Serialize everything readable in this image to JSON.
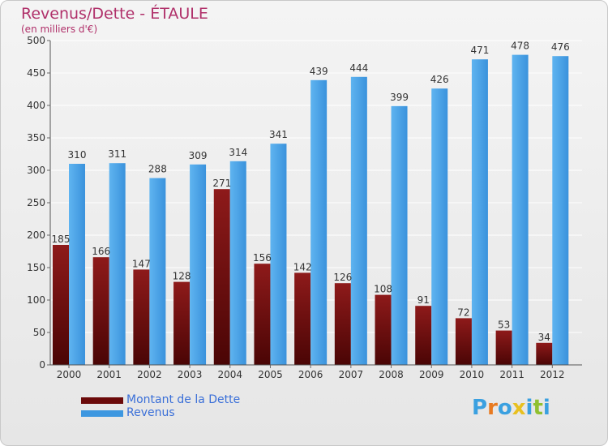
{
  "title": "Revenus/Dette - ÉTAULE",
  "subtitle": "(en milliers d'€)",
  "chart_data": {
    "type": "bar",
    "categories": [
      "2000",
      "2001",
      "2002",
      "2003",
      "2004",
      "2005",
      "2006",
      "2007",
      "2008",
      "2009",
      "2010",
      "2011",
      "2012"
    ],
    "series": [
      {
        "name": "Montant de la Dette",
        "color": "#7a1010",
        "values": [
          185,
          166,
          147,
          128,
          271,
          156,
          142,
          126,
          108,
          91,
          72,
          53,
          34
        ]
      },
      {
        "name": "Revenus",
        "color": "#4aa3e8",
        "values": [
          310,
          311,
          288,
          309,
          314,
          341,
          439,
          444,
          399,
          426,
          471,
          478,
          476
        ]
      }
    ],
    "ylim": [
      0,
      500
    ],
    "yticks": [
      0,
      50,
      100,
      150,
      200,
      250,
      300,
      350,
      400,
      450,
      500
    ],
    "grid": true,
    "legend_position": "bottom-left"
  },
  "legend": [
    {
      "label": "Montant de la Dette",
      "color": "#6b0a0a"
    },
    {
      "label": "Revenus",
      "color": "#3d97e0"
    }
  ],
  "logo": {
    "text": "Proxiti",
    "letters": [
      "P",
      "r",
      "o",
      "x",
      "i",
      "t",
      "i"
    ],
    "colors": [
      "#3aa0e0",
      "#e87a20",
      "#3aa0e0",
      "#e8c020",
      "#3aa0e0",
      "#90c030",
      "#3aa0e0"
    ]
  }
}
